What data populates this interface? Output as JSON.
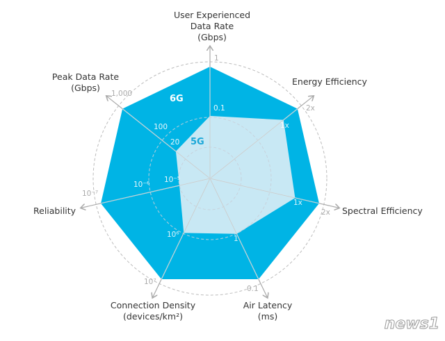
{
  "chart_data": {
    "type": "radar",
    "axes": [
      {
        "label": [
          "User Experienced",
          "Data Rate",
          "(Gbps)"
        ],
        "ticks": [
          "0.1",
          "1"
        ]
      },
      {
        "label": [
          "Energy Efficiency"
        ],
        "ticks": [
          "1x",
          "2x"
        ]
      },
      {
        "label": [
          "Spectral Efficiency"
        ],
        "ticks": [
          "1x",
          "2x"
        ]
      },
      {
        "label": [
          "Air Latency",
          "(ms)"
        ],
        "ticks": [
          "1",
          "0.1"
        ]
      },
      {
        "label": [
          "Connection Density",
          "(devices/km²)"
        ],
        "ticks": [
          "10⁶",
          "10⁷"
        ]
      },
      {
        "label": [
          "Reliability"
        ],
        "ticks": [
          "10⁻⁵",
          "10⁻⁶",
          "10⁻⁷"
        ]
      },
      {
        "label": [
          "Peak Data Rate",
          "(Gbps)"
        ],
        "ticks": [
          "20",
          "100",
          "1,000"
        ]
      }
    ],
    "series": [
      {
        "name": "6G",
        "color": "#00b4e5",
        "values": [
          1.0,
          1.0,
          1.0,
          1.0,
          1.0,
          1.0,
          1.0
        ]
      },
      {
        "name": "5G",
        "color": "#c8e8f4",
        "values": [
          0.56,
          0.84,
          0.78,
          0.55,
          0.54,
          0.28,
          0.39
        ]
      }
    ],
    "value_scale": "normalized fraction of outer ring",
    "grid": "dashed concentric circles"
  },
  "watermark": "news1"
}
